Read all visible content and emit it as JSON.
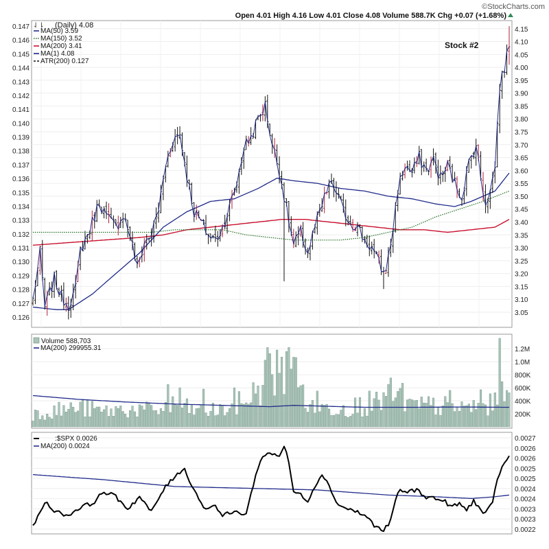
{
  "header": {
    "watermark": "©StockCharts.com",
    "quote": "Open 4.01  High 4.16  Low 4.01  Close 4.08  Volume 588.7K  Chg +0.07 (+1.68%)",
    "daily_label": "(Daily) 4.08",
    "stock_label": "Stock #2"
  },
  "colors": {
    "candle": "#111111",
    "candle_down": "#b0203a",
    "ma50": "#1f2a8a",
    "ma150": "#1e6b1e",
    "ma200": "#c8102e",
    "volume_bar": "#a9c4b8",
    "volume_edge": "#6f8f82",
    "ratio_line": "#000000",
    "ratio_ma": "#1f2a8a",
    "up_arrow": "#2e8b57"
  },
  "chart_data": [
    {
      "type": "candlestick",
      "title": "(Daily) 4.08",
      "annotation": "Stock #2",
      "left_axis_ticks": [
        "0.147",
        "0.146",
        "0.145",
        "0.144",
        "0.143",
        "0.142",
        "0.141",
        "0.140",
        "0.139",
        "0.138",
        "0.137",
        "0.136",
        "0.135",
        "0.134",
        "0.133",
        "0.132",
        "0.131",
        "0.130",
        "0.129",
        "0.128",
        "0.127",
        "0.126"
      ],
      "right_axis_ticks": [
        "4.15",
        "4.10",
        "4.05",
        "4.00",
        "3.95",
        "3.90",
        "3.85",
        "3.80",
        "3.75",
        "3.70",
        "3.65",
        "3.60",
        "3.55",
        "3.50",
        "3.45",
        "3.40",
        "3.35",
        "3.30",
        "3.25",
        "3.20",
        "3.15",
        "3.10",
        "3.05"
      ],
      "ylim": [
        3.01,
        4.16
      ],
      "legend": [
        {
          "label": "MA(50) 3.59",
          "style": "solid",
          "color_key": "ma50"
        },
        {
          "label": "MA(150) 3.52",
          "style": "dotted",
          "color_key": "ma150"
        },
        {
          "label": "MA(200) 3.41",
          "style": "solid",
          "color_key": "ma200"
        },
        {
          "label": "MA(1) 4.08",
          "style": "solid",
          "color_key": "ma50"
        },
        {
          "label": "ATR(200) 0.127",
          "style": "dashed",
          "color_key": "candle"
        }
      ],
      "close_anchors": [
        [
          0,
          3.1
        ],
        [
          3,
          3.28
        ],
        [
          5,
          3.07
        ],
        [
          9,
          3.18
        ],
        [
          12,
          3.11
        ],
        [
          15,
          3.08
        ],
        [
          18,
          3.14
        ],
        [
          20,
          3.29
        ],
        [
          24,
          3.37
        ],
        [
          28,
          3.48
        ],
        [
          31,
          3.42
        ],
        [
          35,
          3.38
        ],
        [
          38,
          3.43
        ],
        [
          41,
          3.35
        ],
        [
          44,
          3.22
        ],
        [
          47,
          3.32
        ],
        [
          50,
          3.35
        ],
        [
          53,
          3.45
        ],
        [
          56,
          3.62
        ],
        [
          59,
          3.72
        ],
        [
          62,
          3.74
        ],
        [
          65,
          3.58
        ],
        [
          68,
          3.44
        ],
        [
          71,
          3.4
        ],
        [
          74,
          3.35
        ],
        [
          77,
          3.33
        ],
        [
          80,
          3.38
        ],
        [
          83,
          3.46
        ],
        [
          86,
          3.55
        ],
        [
          89,
          3.69
        ],
        [
          92,
          3.73
        ],
        [
          95,
          3.8
        ],
        [
          98,
          3.85
        ],
        [
          101,
          3.7
        ],
        [
          104,
          3.6
        ],
        [
          107,
          3.45
        ],
        [
          110,
          3.31
        ],
        [
          113,
          3.36
        ],
        [
          116,
          3.28
        ],
        [
          119,
          3.38
        ],
        [
          122,
          3.46
        ],
        [
          125,
          3.55
        ],
        [
          128,
          3.52
        ],
        [
          131,
          3.44
        ],
        [
          134,
          3.4
        ],
        [
          137,
          3.38
        ],
        [
          140,
          3.33
        ],
        [
          143,
          3.3
        ],
        [
          146,
          3.24
        ],
        [
          148,
          3.2
        ],
        [
          150,
          3.26
        ],
        [
          152,
          3.38
        ],
        [
          154,
          3.53
        ],
        [
          157,
          3.62
        ],
        [
          160,
          3.59
        ],
        [
          163,
          3.65
        ],
        [
          166,
          3.6
        ],
        [
          169,
          3.64
        ],
        [
          172,
          3.57
        ],
        [
          175,
          3.62
        ],
        [
          178,
          3.55
        ],
        [
          181,
          3.5
        ],
        [
          184,
          3.63
        ],
        [
          187,
          3.7
        ],
        [
          189,
          3.57
        ],
        [
          191,
          3.48
        ],
        [
          193,
          3.52
        ],
        [
          195,
          3.62
        ],
        [
          197,
          3.93
        ],
        [
          199,
          4.0
        ],
        [
          201,
          4.08
        ]
      ],
      "ma50_anchors": [
        [
          0,
          3.07
        ],
        [
          10,
          3.06
        ],
        [
          15,
          3.06
        ],
        [
          25,
          3.12
        ],
        [
          35,
          3.2
        ],
        [
          45,
          3.28
        ],
        [
          55,
          3.38
        ],
        [
          65,
          3.44
        ],
        [
          75,
          3.48
        ],
        [
          85,
          3.49
        ],
        [
          95,
          3.53
        ],
        [
          103,
          3.57
        ],
        [
          110,
          3.56
        ],
        [
          120,
          3.55
        ],
        [
          130,
          3.53
        ],
        [
          140,
          3.52
        ],
        [
          150,
          3.5
        ],
        [
          160,
          3.49
        ],
        [
          170,
          3.47
        ],
        [
          178,
          3.46
        ],
        [
          185,
          3.48
        ],
        [
          195,
          3.52
        ],
        [
          201,
          3.59
        ]
      ],
      "ma150_anchors": [
        [
          0,
          3.36
        ],
        [
          10,
          3.36
        ],
        [
          20,
          3.36
        ],
        [
          30,
          3.36
        ],
        [
          40,
          3.36
        ],
        [
          50,
          3.36
        ],
        [
          60,
          3.37
        ],
        [
          70,
          3.37
        ],
        [
          80,
          3.37
        ],
        [
          90,
          3.35
        ],
        [
          100,
          3.34
        ],
        [
          110,
          3.33
        ],
        [
          120,
          3.33
        ],
        [
          130,
          3.33
        ],
        [
          140,
          3.34
        ],
        [
          150,
          3.36
        ],
        [
          160,
          3.38
        ],
        [
          170,
          3.42
        ],
        [
          180,
          3.45
        ],
        [
          190,
          3.48
        ],
        [
          201,
          3.52
        ]
      ],
      "ma200_anchors": [
        [
          0,
          3.31
        ],
        [
          15,
          3.32
        ],
        [
          30,
          3.33
        ],
        [
          45,
          3.34
        ],
        [
          55,
          3.35
        ],
        [
          65,
          3.37
        ],
        [
          75,
          3.38
        ],
        [
          85,
          3.39
        ],
        [
          95,
          3.4
        ],
        [
          105,
          3.41
        ],
        [
          115,
          3.41
        ],
        [
          125,
          3.4
        ],
        [
          135,
          3.39
        ],
        [
          145,
          3.38
        ],
        [
          155,
          3.37
        ],
        [
          165,
          3.37
        ],
        [
          175,
          3.36
        ],
        [
          185,
          3.37
        ],
        [
          195,
          3.38
        ],
        [
          201,
          3.41
        ]
      ],
      "bar_count": 202
    },
    {
      "type": "bar",
      "title": "Volume 588,703",
      "legend": [
        {
          "label": "MA(200) 299955.31",
          "color_key": "ratio_ma"
        }
      ],
      "right_axis_ticks": [
        "1.2M",
        "1.0M",
        "800K",
        "600K",
        "400K",
        "200K"
      ],
      "ylim": [
        0,
        1370000
      ],
      "volume_anchors": [
        [
          0,
          200000
        ],
        [
          10,
          260000
        ],
        [
          20,
          300000
        ],
        [
          30,
          240000
        ],
        [
          40,
          280000
        ],
        [
          50,
          250000
        ],
        [
          60,
          340000
        ],
        [
          70,
          240000
        ],
        [
          80,
          260000
        ],
        [
          90,
          420000
        ],
        [
          95,
          600000
        ],
        [
          100,
          950000
        ],
        [
          104,
          650000
        ],
        [
          108,
          1150000
        ],
        [
          112,
          650000
        ],
        [
          118,
          280000
        ],
        [
          125,
          300000
        ],
        [
          135,
          320000
        ],
        [
          145,
          360000
        ],
        [
          150,
          520000
        ],
        [
          155,
          440000
        ],
        [
          160,
          320000
        ],
        [
          170,
          330000
        ],
        [
          180,
          300000
        ],
        [
          190,
          320000
        ],
        [
          196,
          360000
        ],
        [
          199,
          560000
        ],
        [
          201,
          590000
        ]
      ],
      "volume_spikes": [
        [
          57,
          650000
        ],
        [
          62,
          600000
        ],
        [
          72,
          580000
        ],
        [
          85,
          600000
        ],
        [
          93,
          680000
        ],
        [
          97,
          640000
        ],
        [
          103,
          1180000
        ],
        [
          108,
          1220000
        ],
        [
          110,
          1070000
        ],
        [
          120,
          550000
        ],
        [
          142,
          550000
        ],
        [
          149,
          470000
        ],
        [
          156,
          670000
        ],
        [
          176,
          560000
        ],
        [
          189,
          570000
        ],
        [
          197,
          1360000
        ],
        [
          200,
          560000
        ]
      ],
      "ma200_anchors": [
        [
          0,
          480000
        ],
        [
          20,
          420000
        ],
        [
          40,
          380000
        ],
        [
          60,
          350000
        ],
        [
          80,
          330000
        ],
        [
          100,
          310000
        ],
        [
          110,
          330000
        ],
        [
          120,
          320000
        ],
        [
          140,
          300000
        ],
        [
          160,
          300000
        ],
        [
          180,
          305000
        ],
        [
          201,
          300000
        ]
      ]
    },
    {
      "type": "line",
      "title": ":$SPX 0.0026",
      "legend": [
        {
          "label": "MA(200) 0.0024",
          "color_key": "ratio_ma"
        }
      ],
      "right_axis_ticks": [
        "0.0027",
        "0.0026",
        "0.0026",
        "0.0025",
        "0.0025",
        "0.0024",
        "0.0024",
        "0.0023",
        "0.0023",
        "0.0022"
      ],
      "ylim": [
        0.00219,
        0.00277
      ],
      "ratio_anchors": [
        [
          0,
          0.00222
        ],
        [
          5,
          0.00237
        ],
        [
          10,
          0.00231
        ],
        [
          15,
          0.00229
        ],
        [
          20,
          0.00234
        ],
        [
          25,
          0.00236
        ],
        [
          30,
          0.00243
        ],
        [
          35,
          0.0024
        ],
        [
          40,
          0.00233
        ],
        [
          45,
          0.0024
        ],
        [
          50,
          0.00231
        ],
        [
          55,
          0.00244
        ],
        [
          58,
          0.00249
        ],
        [
          61,
          0.00254
        ],
        [
          64,
          0.00256
        ],
        [
          67,
          0.00247
        ],
        [
          70,
          0.00239
        ],
        [
          73,
          0.00232
        ],
        [
          76,
          0.00236
        ],
        [
          80,
          0.00229
        ],
        [
          85,
          0.00231
        ],
        [
          90,
          0.0023
        ],
        [
          93,
          0.00247
        ],
        [
          96,
          0.00262
        ],
        [
          100,
          0.00266
        ],
        [
          104,
          0.00264
        ],
        [
          106,
          0.0027
        ],
        [
          108,
          0.0026
        ],
        [
          110,
          0.00243
        ],
        [
          113,
          0.00241
        ],
        [
          116,
          0.00238
        ],
        [
          119,
          0.00246
        ],
        [
          122,
          0.00254
        ],
        [
          125,
          0.00246
        ],
        [
          129,
          0.00235
        ],
        [
          133,
          0.00233
        ],
        [
          137,
          0.00231
        ],
        [
          141,
          0.00228
        ],
        [
          145,
          0.00222
        ],
        [
          148,
          0.0022
        ],
        [
          151,
          0.00226
        ],
        [
          154,
          0.00243
        ],
        [
          158,
          0.00243
        ],
        [
          162,
          0.00244
        ],
        [
          166,
          0.0024
        ],
        [
          170,
          0.00239
        ],
        [
          174,
          0.00237
        ],
        [
          177,
          0.00234
        ],
        [
          180,
          0.00236
        ],
        [
          183,
          0.00232
        ],
        [
          186,
          0.00238
        ],
        [
          189,
          0.00232
        ],
        [
          191,
          0.0023
        ],
        [
          194,
          0.00236
        ],
        [
          196,
          0.00251
        ],
        [
          198,
          0.00257
        ],
        [
          201,
          0.00264
        ]
      ],
      "ma200_anchors": [
        [
          0,
          0.00253
        ],
        [
          30,
          0.0025
        ],
        [
          60,
          0.00246
        ],
        [
          90,
          0.00245
        ],
        [
          120,
          0.00244
        ],
        [
          150,
          0.00241
        ],
        [
          170,
          0.0024
        ],
        [
          185,
          0.00239
        ],
        [
          195,
          0.0024
        ],
        [
          201,
          0.00241
        ]
      ]
    }
  ]
}
